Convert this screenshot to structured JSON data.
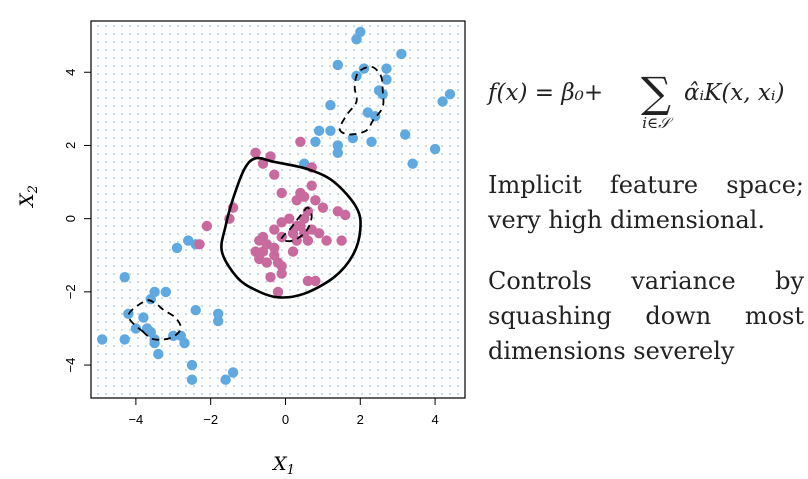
{
  "chart_data": {
    "type": "scatter",
    "xlabel": "X",
    "xlabel_sub": "1",
    "ylabel": "X",
    "ylabel_sub": "2",
    "xlim": [
      -5.2,
      4.8
    ],
    "ylim": [
      -4.9,
      5.4
    ],
    "xticks": [
      -4,
      -2,
      0,
      2,
      4
    ],
    "yticks": [
      -4,
      -2,
      0,
      2,
      4
    ],
    "background_grid": "dotted light-blue point grid",
    "series": [
      {
        "color": "#5fa9e0",
        "points": [
          [
            1.9,
            4.9
          ],
          [
            2.0,
            5.1
          ],
          [
            1.4,
            4.2
          ],
          [
            3.1,
            4.5
          ],
          [
            2.1,
            4.1
          ],
          [
            2.7,
            4.1
          ],
          [
            1.9,
            3.9
          ],
          [
            2.7,
            3.8
          ],
          [
            2.5,
            3.5
          ],
          [
            2.6,
            3.4
          ],
          [
            4.4,
            3.4
          ],
          [
            4.2,
            3.2
          ],
          [
            1.2,
            3.1
          ],
          [
            2.2,
            2.9
          ],
          [
            2.4,
            2.8
          ],
          [
            0.9,
            2.4
          ],
          [
            1.2,
            2.4
          ],
          [
            1.8,
            2.2
          ],
          [
            3.2,
            2.3
          ],
          [
            0.8,
            2.1
          ],
          [
            1.4,
            2.0
          ],
          [
            2.3,
            2.1
          ],
          [
            1.4,
            1.8
          ],
          [
            4.0,
            1.9
          ],
          [
            0.5,
            1.5
          ],
          [
            3.4,
            1.5
          ],
          [
            -2.4,
            -0.7
          ],
          [
            -2.9,
            -0.8
          ],
          [
            -2.6,
            -0.6
          ],
          [
            -4.3,
            -1.6
          ],
          [
            -3.5,
            -2.0
          ],
          [
            -3.6,
            -2.2
          ],
          [
            -3.2,
            -2.0
          ],
          [
            -4.2,
            -2.6
          ],
          [
            -3.8,
            -2.7
          ],
          [
            -1.8,
            -2.6
          ],
          [
            -1.8,
            -2.8
          ],
          [
            -2.4,
            -2.5
          ],
          [
            -4.0,
            -3.0
          ],
          [
            -3.7,
            -3.0
          ],
          [
            -3.6,
            -3.1
          ],
          [
            -3.0,
            -3.2
          ],
          [
            -3.5,
            -3.3
          ],
          [
            -2.8,
            -3.2
          ],
          [
            -4.9,
            -3.3
          ],
          [
            -4.3,
            -3.3
          ],
          [
            -3.5,
            -3.4
          ],
          [
            -2.7,
            -3.4
          ],
          [
            -3.4,
            -3.7
          ],
          [
            -2.5,
            -4.0
          ],
          [
            -1.4,
            -4.2
          ],
          [
            -2.5,
            -4.4
          ],
          [
            -1.6,
            -4.4
          ]
        ]
      },
      {
        "color": "#c96a9e",
        "points": [
          [
            -0.8,
            1.8
          ],
          [
            -0.4,
            1.7
          ],
          [
            -0.6,
            1.5
          ],
          [
            -0.3,
            1.2
          ],
          [
            0.7,
            1.4
          ],
          [
            0.4,
            2.1
          ],
          [
            -0.1,
            0.7
          ],
          [
            0.7,
            0.9
          ],
          [
            0.5,
            0.6
          ],
          [
            0.4,
            0.7
          ],
          [
            0.3,
            0.5
          ],
          [
            0.8,
            0.5
          ],
          [
            1.0,
            0.3
          ],
          [
            0.6,
            0.2
          ],
          [
            1.4,
            0.2
          ],
          [
            1.6,
            0.1
          ],
          [
            -1.4,
            0.3
          ],
          [
            -1.5,
            0.0
          ],
          [
            -2.1,
            -0.2
          ],
          [
            -0.1,
            -0.1
          ],
          [
            0.1,
            0.0
          ],
          [
            0.5,
            0.0
          ],
          [
            0.4,
            -0.2
          ],
          [
            0.7,
            -0.3
          ],
          [
            -0.3,
            -0.3
          ],
          [
            0.2,
            -0.4
          ],
          [
            0.5,
            -0.4
          ],
          [
            -0.1,
            -0.5
          ],
          [
            0.9,
            -0.4
          ],
          [
            0.6,
            -0.6
          ],
          [
            1.5,
            -0.6
          ],
          [
            0.3,
            -0.6
          ],
          [
            -0.7,
            -0.6
          ],
          [
            -0.5,
            -0.7
          ],
          [
            1.1,
            -0.6
          ],
          [
            -0.3,
            -0.8
          ],
          [
            -2.3,
            -0.7
          ],
          [
            -0.8,
            -0.9
          ],
          [
            -0.6,
            -0.9
          ],
          [
            -0.3,
            -1.0
          ],
          [
            -0.7,
            -1.1
          ],
          [
            -0.5,
            -1.2
          ],
          [
            -0.1,
            -1.3
          ],
          [
            -0.1,
            -1.5
          ],
          [
            -0.4,
            -1.6
          ],
          [
            0.6,
            -1.7
          ],
          [
            0.8,
            -1.7
          ],
          [
            -0.2,
            -2.0
          ],
          [
            -0.2,
            -1.2
          ],
          [
            0.3,
            -0.2
          ],
          [
            -0.6,
            -0.5
          ],
          [
            0.2,
            -0.9
          ]
        ]
      }
    ],
    "decision_boundary": {
      "solid": [
        [
          -0.8,
          1.65
        ],
        [
          -0.3,
          1.55
        ],
        [
          0.6,
          1.35
        ],
        [
          1.3,
          1.0
        ],
        [
          1.9,
          0.3
        ],
        [
          2.0,
          -0.3
        ],
        [
          1.8,
          -1.0
        ],
        [
          1.3,
          -1.6
        ],
        [
          0.5,
          -2.05
        ],
        [
          -0.2,
          -2.15
        ],
        [
          -0.8,
          -1.95
        ],
        [
          -1.3,
          -1.6
        ],
        [
          -1.7,
          -0.9
        ],
        [
          -1.6,
          -0.2
        ],
        [
          -1.4,
          0.55
        ],
        [
          -1.1,
          1.35
        ]
      ],
      "dashed": [
        [
          [
            -3.8,
            -3.1
          ],
          [
            -4.2,
            -2.65
          ],
          [
            -3.75,
            -2.25
          ],
          [
            -3.5,
            -2.3
          ],
          [
            -3.25,
            -2.5
          ],
          [
            -2.95,
            -2.7
          ],
          [
            -2.8,
            -3.0
          ],
          [
            -3.05,
            -3.25
          ],
          [
            -3.5,
            -3.3
          ]
        ],
        [
          [
            1.45,
            2.45
          ],
          [
            1.7,
            2.3
          ],
          [
            2.15,
            2.4
          ],
          [
            2.35,
            2.7
          ],
          [
            2.6,
            3.05
          ],
          [
            2.6,
            3.5
          ],
          [
            2.55,
            3.9
          ],
          [
            2.3,
            4.15
          ],
          [
            1.95,
            4.0
          ],
          [
            1.85,
            3.6
          ],
          [
            1.9,
            3.2
          ],
          [
            1.65,
            2.85
          ]
        ],
        [
          [
            -0.1,
            -0.55
          ],
          [
            0.15,
            -0.25
          ],
          [
            0.45,
            0.15
          ],
          [
            0.6,
            0.3
          ],
          [
            0.7,
            0.05
          ],
          [
            0.55,
            -0.35
          ],
          [
            0.2,
            -0.6
          ]
        ]
      ]
    }
  },
  "formula": {
    "lhs": "f(x) = β₀+",
    "sum_symbol": "∑",
    "sum_subscript": "i∈𝒮",
    "rhs": "α̂ᵢK(x, xᵢ)"
  },
  "text_blocks": [
    "Implicit feature space; very high dimensional.",
    "Controls variance by squashing down most dimensions severely"
  ]
}
